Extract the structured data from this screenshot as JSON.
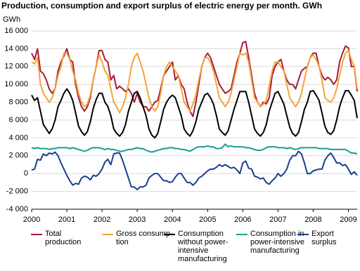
{
  "chart_data": {
    "type": "line",
    "title": "Production, consumption and export surplus of electric energy per month. GWh",
    "y_label": "GWh",
    "categories": [
      "2000",
      null,
      null,
      null,
      null,
      null,
      null,
      null,
      null,
      null,
      null,
      null,
      "2001",
      null,
      null,
      null,
      null,
      null,
      null,
      null,
      null,
      null,
      null,
      null,
      "2002",
      null,
      null,
      null,
      null,
      null,
      null,
      null,
      null,
      null,
      null,
      null,
      "2003",
      null,
      null,
      null,
      null,
      null,
      null,
      null,
      null,
      null,
      null,
      null,
      "2004",
      null,
      null,
      null,
      null,
      null,
      null,
      null,
      null,
      null,
      null,
      null,
      "2005",
      null,
      null,
      null,
      null,
      null,
      null,
      null,
      null,
      null,
      null,
      null,
      "2006",
      null,
      null,
      null,
      null,
      null,
      null,
      null,
      null,
      null,
      null,
      null,
      "2007",
      null,
      null,
      null,
      null,
      null,
      null,
      null,
      null,
      null,
      null,
      null,
      "2008",
      null,
      null,
      null,
      null,
      null,
      null,
      null,
      null,
      null,
      null,
      null,
      "2009",
      null,
      null,
      null
    ],
    "ylim": [
      -4000,
      16000
    ],
    "yticks": [
      {
        "value": -4000,
        "label": "-4 000"
      },
      {
        "value": -2000,
        "label": "-2 000"
      },
      0,
      {
        "value": 2000,
        "label": "2 000"
      },
      {
        "value": 4000,
        "label": "4 000"
      },
      {
        "value": 6000,
        "label": "6 000"
      },
      {
        "value": 8000,
        "label": "8 000"
      },
      {
        "value": 10000,
        "label": "10 000"
      },
      {
        "value": 12000,
        "label": "12 000"
      },
      {
        "value": 14000,
        "label": "14 000"
      },
      {
        "value": 16000,
        "label": "16 000"
      }
    ],
    "grid": true,
    "legend": "bottom",
    "series": [
      {
        "name": "Total production",
        "color": "#a51e36",
        "values": [
          13500,
          12800,
          14000,
          11500,
          11200,
          10500,
          9500,
          9000,
          9500,
          11500,
          12500,
          13200,
          14000,
          12800,
          12500,
          10000,
          8500,
          7500,
          7000,
          7500,
          8500,
          10500,
          12000,
          13800,
          13800,
          12800,
          12500,
          10500,
          11000,
          9500,
          9800,
          9500,
          9200,
          9500,
          9000,
          8000,
          9000,
          8000,
          7500,
          7500,
          7000,
          7500,
          8000,
          8200,
          9500,
          11000,
          11500,
          12000,
          12500,
          10500,
          11000,
          10000,
          9500,
          8000,
          7000,
          6400,
          8000,
          10000,
          12000,
          13000,
          13500,
          13000,
          12000,
          11000,
          10000,
          9500,
          9000,
          9200,
          9500,
          11000,
          12500,
          13500,
          14700,
          14800,
          13000,
          11000,
          9000,
          8000,
          7500,
          8000,
          7800,
          8500,
          11000,
          12000,
          12500,
          12800,
          11500,
          10500,
          10000,
          10000,
          9500,
          10500,
          11500,
          11800,
          12000,
          13000,
          13500,
          13500,
          12000,
          11000,
          10500,
          10800,
          10500,
          10000,
          10500,
          12500,
          13500,
          14300,
          14100,
          12000,
          12000,
          9200
        ]
      },
      {
        "name": "Gross consump­tion",
        "color": "#f7a23a",
        "values": [
          12500,
          12300,
          13000,
          10000,
          9000,
          8500,
          8000,
          8500,
          9500,
          11000,
          12000,
          13500,
          13500,
          12800,
          11500,
          10500,
          9000,
          8000,
          7500,
          7800,
          8800,
          10500,
          12000,
          13300,
          12500,
          11500,
          11000,
          9500,
          8000,
          7500,
          6800,
          7500,
          8500,
          10000,
          12000,
          13000,
          13500,
          12500,
          11500,
          10000,
          8500,
          7500,
          7000,
          7500,
          9000,
          11000,
          12000,
          12500,
          12000,
          11500,
          11000,
          9500,
          8000,
          7500,
          7000,
          7800,
          8800,
          10500,
          12000,
          13000,
          13000,
          12500,
          11500,
          10000,
          8500,
          8000,
          7500,
          8000,
          9000,
          10500,
          12000,
          13500,
          13300,
          13500,
          12500,
          10500,
          8500,
          8000,
          7500,
          7800,
          8200,
          9800,
          11500,
          12500,
          12500,
          12000,
          11500,
          10000,
          8500,
          8000,
          7500,
          8000,
          9000,
          10500,
          12000,
          13000,
          13300,
          12800,
          12000,
          10500,
          8500,
          8200,
          8000,
          8500,
          9500,
          11000,
          12500,
          13500,
          13800,
          12800,
          12000,
          9500
        ]
      },
      {
        "name": "Consumption without power-intensive manufacturing",
        "color": "#000000",
        "values": [
          8800,
          8200,
          8500,
          7000,
          5500,
          5000,
          4500,
          5000,
          6000,
          7500,
          8200,
          9000,
          9500,
          9000,
          8200,
          6800,
          5300,
          4700,
          4300,
          4700,
          5800,
          7300,
          8300,
          9000,
          9000,
          8000,
          7500,
          6500,
          5000,
          4500,
          4200,
          4600,
          5500,
          7000,
          8000,
          9000,
          9200,
          8500,
          7500,
          6500,
          5000,
          4300,
          4000,
          4500,
          5800,
          7200,
          8000,
          8500,
          8800,
          8500,
          7500,
          6500,
          5000,
          4500,
          4200,
          4800,
          5800,
          7200,
          8000,
          8800,
          9000,
          8500,
          7800,
          6500,
          5000,
          4600,
          4300,
          4800,
          6000,
          7200,
          8200,
          9200,
          9200,
          9200,
          8000,
          6500,
          5000,
          4500,
          4200,
          4600,
          5500,
          7000,
          8000,
          9000,
          9200,
          8500,
          7800,
          6500,
          5200,
          4500,
          4200,
          4600,
          5800,
          7200,
          8000,
          9200,
          9300,
          8800,
          8200,
          6800,
          5300,
          4600,
          4400,
          4800,
          6000,
          7500,
          8500,
          9300,
          9300,
          8800,
          8200,
          6200
        ]
      },
      {
        "name": "Consumption in power-intensive manufacturing",
        "color": "#1a9e8f",
        "values": [
          2900,
          2800,
          2900,
          2800,
          2800,
          2800,
          2700,
          2800,
          2800,
          2900,
          2900,
          2900,
          2900,
          2800,
          2900,
          2800,
          2700,
          2600,
          2500,
          2600,
          2800,
          2900,
          2900,
          2900,
          2800,
          2700,
          2800,
          2700,
          2700,
          2600,
          2500,
          2500,
          2600,
          2700,
          2700,
          2800,
          2900,
          2800,
          2800,
          2600,
          2500,
          2400,
          2500,
          2600,
          2700,
          2800,
          2800,
          2900,
          2900,
          2800,
          2800,
          2700,
          2700,
          2600,
          2500,
          2700,
          2900,
          3000,
          3000,
          3000,
          3100,
          3000,
          3000,
          2800,
          2800,
          2900,
          3300,
          3000,
          3100,
          3000,
          3000,
          3000,
          3000,
          2900,
          2900,
          2800,
          2700,
          2600,
          2600,
          2700,
          2900,
          3000,
          3000,
          3000,
          2900,
          2900,
          2900,
          2800,
          2900,
          2800,
          2700,
          2800,
          2900,
          2900,
          2900,
          2900,
          2900,
          2900,
          2800,
          2800,
          2800,
          2800,
          2700,
          2700,
          2700,
          2700,
          2700,
          2700,
          2500,
          2300,
          2300,
          2200
        ]
      },
      {
        "name": "Export surplus",
        "color": "#1b3f8f",
        "values": [
          400,
          500,
          1600,
          1500,
          2200,
          2000,
          2300,
          2200,
          2400,
          2000,
          1200,
          500,
          -200,
          -800,
          -1300,
          -1100,
          -1200,
          -500,
          -300,
          -400,
          -700,
          -200,
          -300,
          0,
          500,
          1300,
          1600,
          1000,
          2200,
          2300,
          2300,
          1500,
          500,
          -500,
          -1500,
          -1500,
          -1800,
          -1500,
          -1500,
          -1300,
          -500,
          -200,
          0,
          0,
          -400,
          -800,
          -800,
          -1000,
          -900,
          -400,
          0,
          0,
          -500,
          -1000,
          -1000,
          -1300,
          -1000,
          -500,
          -300,
          0,
          300,
          500,
          500,
          700,
          1000,
          800,
          1000,
          800,
          600,
          700,
          400,
          0,
          1200,
          1400,
          600,
          500,
          -300,
          -400,
          -600,
          -500,
          -1000,
          -1200,
          -800,
          -500,
          0,
          -300,
          0,
          500,
          1500,
          2000,
          2000,
          2500,
          2200,
          1200,
          0,
          0,
          300,
          400,
          500,
          500,
          1500,
          2000,
          2300,
          1800,
          1200,
          1200,
          900,
          1000,
          500,
          -100,
          200,
          -200
        ]
      }
    ]
  }
}
